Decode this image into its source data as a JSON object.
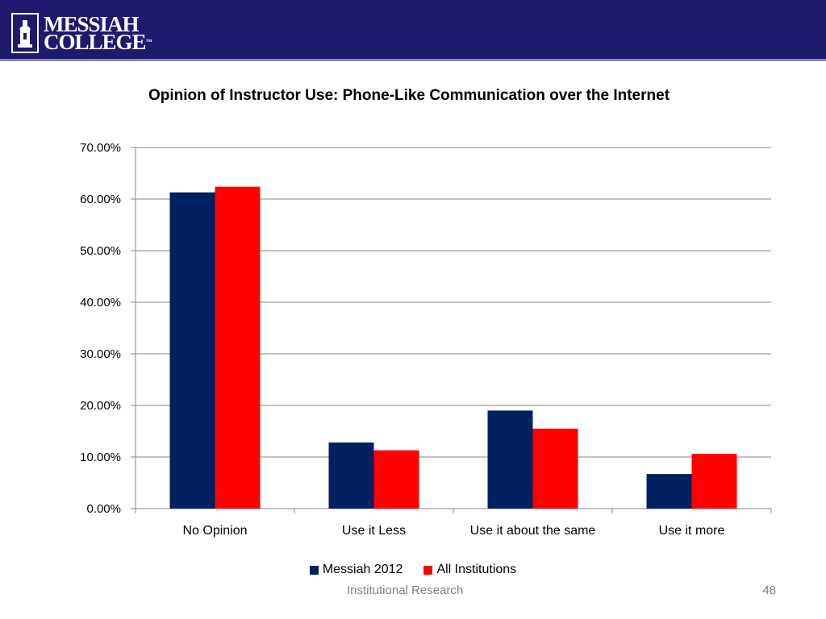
{
  "header": {
    "logo_line1": "MESSIAH",
    "logo_line2": "COLLEGE",
    "logo_tm": "™",
    "background": "#1e1a6e"
  },
  "chart_data": {
    "type": "bar",
    "title": "Opinion of Instructor Use: Phone-Like Communication over the Internet",
    "categories": [
      "No Opinion",
      "Use it Less",
      "Use it about the same",
      "Use it more"
    ],
    "series": [
      {
        "name": "Messiah 2012",
        "color": "#002060",
        "values": [
          61.3,
          12.8,
          19.0,
          6.7
        ]
      },
      {
        "name": "All Institutions",
        "color": "#ff0000",
        "values": [
          62.4,
          11.3,
          15.5,
          10.6
        ]
      }
    ],
    "ylim": [
      0,
      70
    ],
    "yticks": [
      "0.00%",
      "10.00%",
      "20.00%",
      "30.00%",
      "40.00%",
      "50.00%",
      "60.00%",
      "70.00%"
    ],
    "grid": true,
    "legend_position": "bottom"
  },
  "footer": {
    "text": "Institutional Research",
    "page_number": "48"
  }
}
